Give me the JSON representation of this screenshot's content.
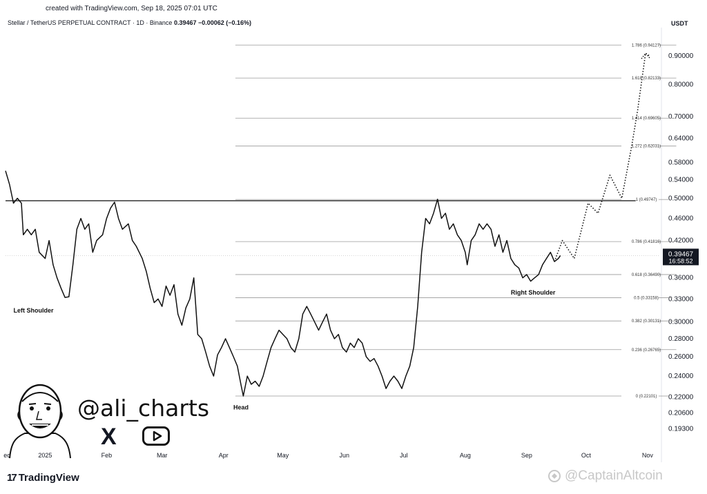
{
  "created_text": "created with TradingView.com, Sep 18, 2025 07:01 UTC",
  "header": {
    "symbol": "Stellar / TetherUS PERPETUAL CONTRACT · 1D · Binance",
    "price": "0.39467",
    "change": "−0.00062 (−0.16%)"
  },
  "currency": "USDT",
  "brand": {
    "logo_glyph": "17",
    "name": "TradingView"
  },
  "watermark": "@CaptainAltcoin",
  "handle": "@ali_charts",
  "social_x_glyph": "X",
  "chart_data": {
    "type": "line",
    "y_scale": "log",
    "ylim": [
      0.178,
      1.0
    ],
    "x_range": [
      "2024-12-12",
      "2025-11-08"
    ],
    "x_ticks": [
      {
        "label": "ec",
        "date": "2024-12-01"
      },
      {
        "label": "2025",
        "date": "2025-01-01"
      },
      {
        "label": "Feb",
        "date": "2025-02-01"
      },
      {
        "label": "Mar",
        "date": "2025-03-01"
      },
      {
        "label": "Apr",
        "date": "2025-04-01"
      },
      {
        "label": "May",
        "date": "2025-05-01"
      },
      {
        "label": "Jun",
        "date": "2025-06-01"
      },
      {
        "label": "Jul",
        "date": "2025-07-01"
      },
      {
        "label": "Aug",
        "date": "2025-08-01"
      },
      {
        "label": "Sep",
        "date": "2025-09-01"
      },
      {
        "label": "Oct",
        "date": "2025-10-01"
      },
      {
        "label": "Nov",
        "date": "2025-11-01"
      }
    ],
    "y_ticks": [
      {
        "value": 0.9,
        "label": "0.90000"
      },
      {
        "value": 0.8,
        "label": "0.80000"
      },
      {
        "value": 0.7,
        "label": "0.70000"
      },
      {
        "value": 0.64,
        "label": "0.64000"
      },
      {
        "value": 0.58,
        "label": "0.58000"
      },
      {
        "value": 0.54,
        "label": "0.54000"
      },
      {
        "value": 0.5,
        "label": "0.50000"
      },
      {
        "value": 0.46,
        "label": "0.46000"
      },
      {
        "value": 0.42,
        "label": "0.42000"
      },
      {
        "value": 0.36,
        "label": "0.36000"
      },
      {
        "value": 0.33,
        "label": "0.33000"
      },
      {
        "value": 0.3,
        "label": "0.30000"
      },
      {
        "value": 0.28,
        "label": "0.28000"
      },
      {
        "value": 0.26,
        "label": "0.26000"
      },
      {
        "value": 0.24,
        "label": "0.24000"
      },
      {
        "value": 0.22,
        "label": "0.22000"
      },
      {
        "value": 0.206,
        "label": "0.20600"
      },
      {
        "value": 0.193,
        "label": "0.19300"
      }
    ],
    "current_price": {
      "value": 0.39467,
      "label": "0.39467",
      "countdown": "16:58:52"
    },
    "fib_start_date": "2025-04-07",
    "fib_levels": [
      {
        "value": 0.94127,
        "label": "1.786 (0.94127)"
      },
      {
        "value": 0.82133,
        "label": "1.618 (0.82133)"
      },
      {
        "value": 0.69605,
        "label": "1.414 (0.69605)"
      },
      {
        "value": 0.62031,
        "label": "1.272 (0.62031)"
      },
      {
        "value": 0.49747,
        "label": "1 (0.49747)"
      },
      {
        "value": 0.41816,
        "label": "0.786 (0.41816)"
      },
      {
        "value": 0.3649,
        "label": "0.618 (0.36490)"
      },
      {
        "value": 0.33158,
        "label": "0.5 (0.33158)"
      },
      {
        "value": 0.30131,
        "label": "0.382 (0.30131)"
      },
      {
        "value": 0.26765,
        "label": "0.236 (0.26765)"
      },
      {
        "value": 0.22101,
        "label": "0 (0.22101)"
      }
    ],
    "neckline": {
      "value": 0.495,
      "from": "2024-12-12",
      "to": "2025-10-26"
    },
    "annotations": [
      {
        "text": "Left Shoulder",
        "date": "2024-12-16",
        "value": 0.312
      },
      {
        "text": "Head",
        "date": "2025-04-06",
        "value": 0.209
      },
      {
        "text": "Right Shoulder",
        "date": "2025-08-24",
        "value": 0.336
      }
    ],
    "series": [
      {
        "style": "solid",
        "points": [
          [
            "2024-12-12",
            0.56
          ],
          [
            "2024-12-14",
            0.53
          ],
          [
            "2024-12-16",
            0.49
          ],
          [
            "2024-12-18",
            0.5
          ],
          [
            "2024-12-20",
            0.49
          ],
          [
            "2024-12-21",
            0.43
          ],
          [
            "2024-12-23",
            0.44
          ],
          [
            "2024-12-25",
            0.43
          ],
          [
            "2024-12-27",
            0.44
          ],
          [
            "2024-12-29",
            0.4
          ],
          [
            "2025-01-01",
            0.39
          ],
          [
            "2025-01-03",
            0.42
          ],
          [
            "2025-01-05",
            0.38
          ],
          [
            "2025-01-07",
            0.36
          ],
          [
            "2025-01-09",
            0.345
          ],
          [
            "2025-01-11",
            0.332
          ],
          [
            "2025-01-13",
            0.333
          ],
          [
            "2025-01-15",
            0.38
          ],
          [
            "2025-01-17",
            0.44
          ],
          [
            "2025-01-19",
            0.46
          ],
          [
            "2025-01-21",
            0.44
          ],
          [
            "2025-01-23",
            0.45
          ],
          [
            "2025-01-25",
            0.4
          ],
          [
            "2025-01-27",
            0.42
          ],
          [
            "2025-01-30",
            0.43
          ],
          [
            "2025-02-01",
            0.46
          ],
          [
            "2025-02-03",
            0.48
          ],
          [
            "2025-02-05",
            0.492
          ],
          [
            "2025-02-07",
            0.46
          ],
          [
            "2025-02-09",
            0.44
          ],
          [
            "2025-02-12",
            0.45
          ],
          [
            "2025-02-14",
            0.42
          ],
          [
            "2025-02-16",
            0.41
          ],
          [
            "2025-02-19",
            0.39
          ],
          [
            "2025-02-21",
            0.37
          ],
          [
            "2025-02-23",
            0.345
          ],
          [
            "2025-02-25",
            0.325
          ],
          [
            "2025-02-27",
            0.33
          ],
          [
            "2025-03-01",
            0.32
          ],
          [
            "2025-03-03",
            0.348
          ],
          [
            "2025-03-05",
            0.335
          ],
          [
            "2025-03-07",
            0.35
          ],
          [
            "2025-03-09",
            0.31
          ],
          [
            "2025-03-11",
            0.296
          ],
          [
            "2025-03-13",
            0.318
          ],
          [
            "2025-03-15",
            0.33
          ],
          [
            "2025-03-17",
            0.36
          ],
          [
            "2025-03-19",
            0.285
          ],
          [
            "2025-03-21",
            0.28
          ],
          [
            "2025-03-23",
            0.265
          ],
          [
            "2025-03-25",
            0.25
          ],
          [
            "2025-03-27",
            0.24
          ],
          [
            "2025-03-29",
            0.262
          ],
          [
            "2025-03-31",
            0.27
          ],
          [
            "2025-04-02",
            0.28
          ],
          [
            "2025-04-04",
            0.27
          ],
          [
            "2025-04-06",
            0.26
          ],
          [
            "2025-04-08",
            0.25
          ],
          [
            "2025-04-10",
            0.23
          ],
          [
            "2025-04-11",
            0.221
          ],
          [
            "2025-04-13",
            0.24
          ],
          [
            "2025-04-15",
            0.232
          ],
          [
            "2025-04-17",
            0.235
          ],
          [
            "2025-04-19",
            0.23
          ],
          [
            "2025-04-21",
            0.24
          ],
          [
            "2025-04-23",
            0.255
          ],
          [
            "2025-04-25",
            0.27
          ],
          [
            "2025-04-27",
            0.28
          ],
          [
            "2025-04-29",
            0.29
          ],
          [
            "2025-05-01",
            0.285
          ],
          [
            "2025-05-03",
            0.28
          ],
          [
            "2025-05-05",
            0.27
          ],
          [
            "2025-05-07",
            0.265
          ],
          [
            "2025-05-09",
            0.28
          ],
          [
            "2025-05-11",
            0.31
          ],
          [
            "2025-05-13",
            0.32
          ],
          [
            "2025-05-15",
            0.31
          ],
          [
            "2025-05-17",
            0.3
          ],
          [
            "2025-05-19",
            0.29
          ],
          [
            "2025-05-21",
            0.3
          ],
          [
            "2025-05-23",
            0.31
          ],
          [
            "2025-05-25",
            0.29
          ],
          [
            "2025-05-27",
            0.28
          ],
          [
            "2025-05-29",
            0.285
          ],
          [
            "2025-05-31",
            0.27
          ],
          [
            "2025-06-02",
            0.265
          ],
          [
            "2025-06-04",
            0.275
          ],
          [
            "2025-06-06",
            0.27
          ],
          [
            "2025-06-08",
            0.28
          ],
          [
            "2025-06-10",
            0.275
          ],
          [
            "2025-06-12",
            0.26
          ],
          [
            "2025-06-14",
            0.255
          ],
          [
            "2025-06-16",
            0.258
          ],
          [
            "2025-06-18",
            0.25
          ],
          [
            "2025-06-20",
            0.24
          ],
          [
            "2025-06-22",
            0.228
          ],
          [
            "2025-06-24",
            0.235
          ],
          [
            "2025-06-26",
            0.24
          ],
          [
            "2025-06-28",
            0.235
          ],
          [
            "2025-06-30",
            0.228
          ],
          [
            "2025-07-02",
            0.24
          ],
          [
            "2025-07-04",
            0.25
          ],
          [
            "2025-07-06",
            0.27
          ],
          [
            "2025-07-08",
            0.32
          ],
          [
            "2025-07-10",
            0.4
          ],
          [
            "2025-07-12",
            0.46
          ],
          [
            "2025-07-14",
            0.45
          ],
          [
            "2025-07-16",
            0.47
          ],
          [
            "2025-07-18",
            0.498
          ],
          [
            "2025-07-20",
            0.46
          ],
          [
            "2025-07-22",
            0.47
          ],
          [
            "2025-07-24",
            0.44
          ],
          [
            "2025-07-26",
            0.45
          ],
          [
            "2025-07-28",
            0.43
          ],
          [
            "2025-07-30",
            0.42
          ],
          [
            "2025-08-01",
            0.4
          ],
          [
            "2025-08-02",
            0.38
          ],
          [
            "2025-08-04",
            0.42
          ],
          [
            "2025-08-06",
            0.43
          ],
          [
            "2025-08-08",
            0.45
          ],
          [
            "2025-08-10",
            0.44
          ],
          [
            "2025-08-12",
            0.45
          ],
          [
            "2025-08-14",
            0.44
          ],
          [
            "2025-08-16",
            0.41
          ],
          [
            "2025-08-18",
            0.43
          ],
          [
            "2025-08-20",
            0.4
          ],
          [
            "2025-08-22",
            0.42
          ],
          [
            "2025-08-24",
            0.39
          ],
          [
            "2025-08-26",
            0.38
          ],
          [
            "2025-08-28",
            0.375
          ],
          [
            "2025-08-30",
            0.36
          ],
          [
            "2025-09-01",
            0.365
          ],
          [
            "2025-09-03",
            0.355
          ],
          [
            "2025-09-05",
            0.36
          ],
          [
            "2025-09-07",
            0.365
          ],
          [
            "2025-09-09",
            0.38
          ],
          [
            "2025-09-11",
            0.39
          ],
          [
            "2025-09-13",
            0.4
          ],
          [
            "2025-09-15",
            0.385
          ],
          [
            "2025-09-17",
            0.39
          ],
          [
            "2025-09-18",
            0.39467
          ]
        ]
      },
      {
        "style": "dotted",
        "points": [
          [
            "2025-09-15",
            0.385
          ],
          [
            "2025-09-19",
            0.42
          ],
          [
            "2025-09-25",
            0.39
          ],
          [
            "2025-10-02",
            0.49
          ],
          [
            "2025-10-07",
            0.47
          ],
          [
            "2025-10-13",
            0.55
          ],
          [
            "2025-10-19",
            0.5
          ],
          [
            "2025-10-24",
            0.62
          ],
          [
            "2025-10-27",
            0.72
          ],
          [
            "2025-10-31",
            0.91
          ],
          [
            "2025-11-02",
            0.9
          ]
        ]
      }
    ]
  }
}
